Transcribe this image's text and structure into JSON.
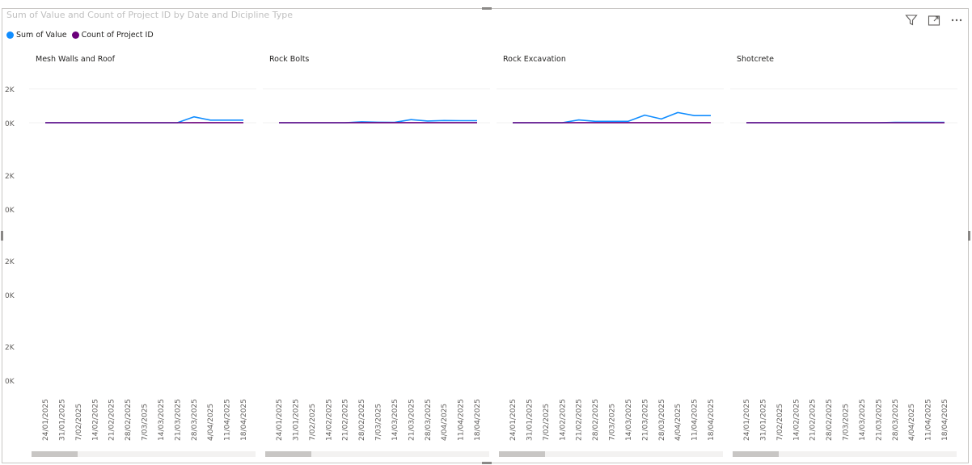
{
  "header": {
    "title": "Sum of Value and Count of Project ID by Date and Dicipline Type"
  },
  "legend": {
    "items": [
      {
        "label": "Sum of Value",
        "color": "#118DFF"
      },
      {
        "label": "Count of Project ID",
        "color": "#6B007B"
      }
    ]
  },
  "toolbar": {
    "icons": [
      "filter-icon",
      "focus-mode-icon",
      "more-options-icon"
    ]
  },
  "chart_data": {
    "type": "line",
    "title": "Sum of Value and Count of Project ID by Date and Dicipline Type",
    "x_categories": [
      "24/01/2025",
      "31/01/2025",
      "7/02/2025",
      "14/02/2025",
      "21/02/2025",
      "28/02/2025",
      "7/03/2025",
      "14/03/2025",
      "21/03/2025",
      "28/03/2025",
      "4/04/2025",
      "11/04/2025",
      "18/04/2025"
    ],
    "y_ticks": [
      "2K",
      "0K"
    ],
    "row_ticks": [
      [
        "2K",
        "0K"
      ],
      [
        "2K",
        "0K"
      ],
      [
        "2K",
        "0K"
      ],
      [
        "2K",
        "0K"
      ]
    ],
    "ylim": [
      0,
      2000
    ],
    "grid": true,
    "legend_position": "top-left",
    "panels": [
      {
        "name": "Mesh Walls and Roof",
        "series": [
          {
            "name": "Sum of Value",
            "color": "#118DFF",
            "values": [
              0,
              0,
              0,
              0,
              0,
              0,
              0,
              0,
              0,
              350,
              150,
              150,
              150
            ]
          },
          {
            "name": "Count of Project ID",
            "color": "#6B007B",
            "values": [
              2,
              2,
              2,
              2,
              2,
              2,
              2,
              2,
              2,
              3,
              3,
              3,
              3
            ]
          }
        ]
      },
      {
        "name": "Rock Bolts",
        "series": [
          {
            "name": "Sum of Value",
            "color": "#118DFF",
            "values": [
              0,
              0,
              0,
              0,
              0,
              50,
              30,
              20,
              180,
              100,
              130,
              120,
              120
            ]
          },
          {
            "name": "Count of Project ID",
            "color": "#6B007B",
            "values": [
              2,
              2,
              2,
              2,
              2,
              3,
              3,
              3,
              4,
              4,
              4,
              4,
              4
            ]
          }
        ]
      },
      {
        "name": "Rock Excavation",
        "series": [
          {
            "name": "Sum of Value",
            "color": "#118DFF",
            "values": [
              0,
              0,
              0,
              0,
              160,
              80,
              80,
              80,
              450,
              220,
              600,
              420,
              420
            ]
          },
          {
            "name": "Count of Project ID",
            "color": "#6B007B",
            "values": [
              2,
              2,
              2,
              2,
              3,
              3,
              3,
              3,
              4,
              4,
              5,
              5,
              5
            ]
          }
        ]
      },
      {
        "name": "Shotcrete",
        "series": [
          {
            "name": "Sum of Value",
            "color": "#118DFF",
            "values": [
              0,
              0,
              0,
              0,
              0,
              0,
              0,
              0,
              0,
              20,
              20,
              20,
              20
            ]
          },
          {
            "name": "Count of Project ID",
            "color": "#6B007B",
            "values": [
              2,
              2,
              2,
              2,
              2,
              2,
              2,
              2,
              2,
              2,
              2,
              2,
              2
            ]
          }
        ]
      }
    ]
  }
}
